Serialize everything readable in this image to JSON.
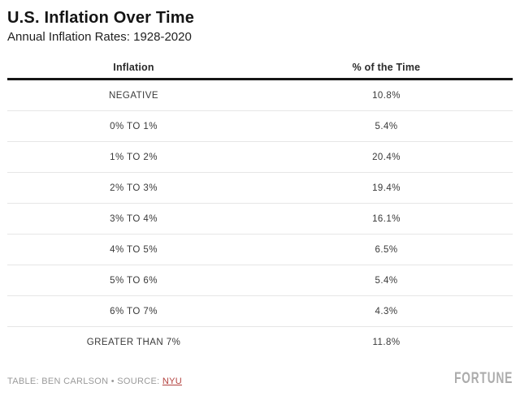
{
  "header": {
    "title": "U.S. Inflation Over Time",
    "subtitle": "Annual Inflation Rates: 1928-2020"
  },
  "table": {
    "columns": [
      "Inflation",
      "% of the Time"
    ],
    "rows": [
      {
        "label": "NEGATIVE",
        "value": "10.8%"
      },
      {
        "label": "0% TO 1%",
        "value": "5.4%"
      },
      {
        "label": "1% TO 2%",
        "value": "20.4%"
      },
      {
        "label": "2% TO 3%",
        "value": "19.4%"
      },
      {
        "label": "3% TO 4%",
        "value": "16.1%"
      },
      {
        "label": "4% TO 5%",
        "value": "6.5%"
      },
      {
        "label": "5% TO 6%",
        "value": "5.4%"
      },
      {
        "label": "6% TO 7%",
        "value": "4.3%"
      },
      {
        "label": "GREATER THAN 7%",
        "value": "11.8%"
      }
    ]
  },
  "footer": {
    "credit_prefix": "TABLE: BEN CARLSON • SOURCE: ",
    "source_link": "NYU",
    "brand": "FORTUNE"
  },
  "colors": {
    "title_text": "#141414",
    "body_text": "#3a3a3a",
    "header_rule": "#161616",
    "row_divider": "#e6e6e6",
    "footer_text": "#9a9a9a",
    "link_red": "#b2403d",
    "brand_gray": "#acacac",
    "background": "#ffffff"
  },
  "chart_data": {
    "type": "table",
    "title": "U.S. Inflation Over Time",
    "subtitle": "Annual Inflation Rates: 1928-2020",
    "columns": [
      "Inflation",
      "% of the Time"
    ],
    "categories": [
      "NEGATIVE",
      "0% TO 1%",
      "1% TO 2%",
      "2% TO 3%",
      "3% TO 4%",
      "4% TO 5%",
      "5% TO 6%",
      "6% TO 7%",
      "GREATER THAN 7%"
    ],
    "values": [
      10.8,
      5.4,
      20.4,
      19.4,
      16.1,
      6.5,
      5.4,
      4.3,
      11.8
    ],
    "unit": "%",
    "legend_position": "none",
    "grid": "horizontal-dividers"
  }
}
